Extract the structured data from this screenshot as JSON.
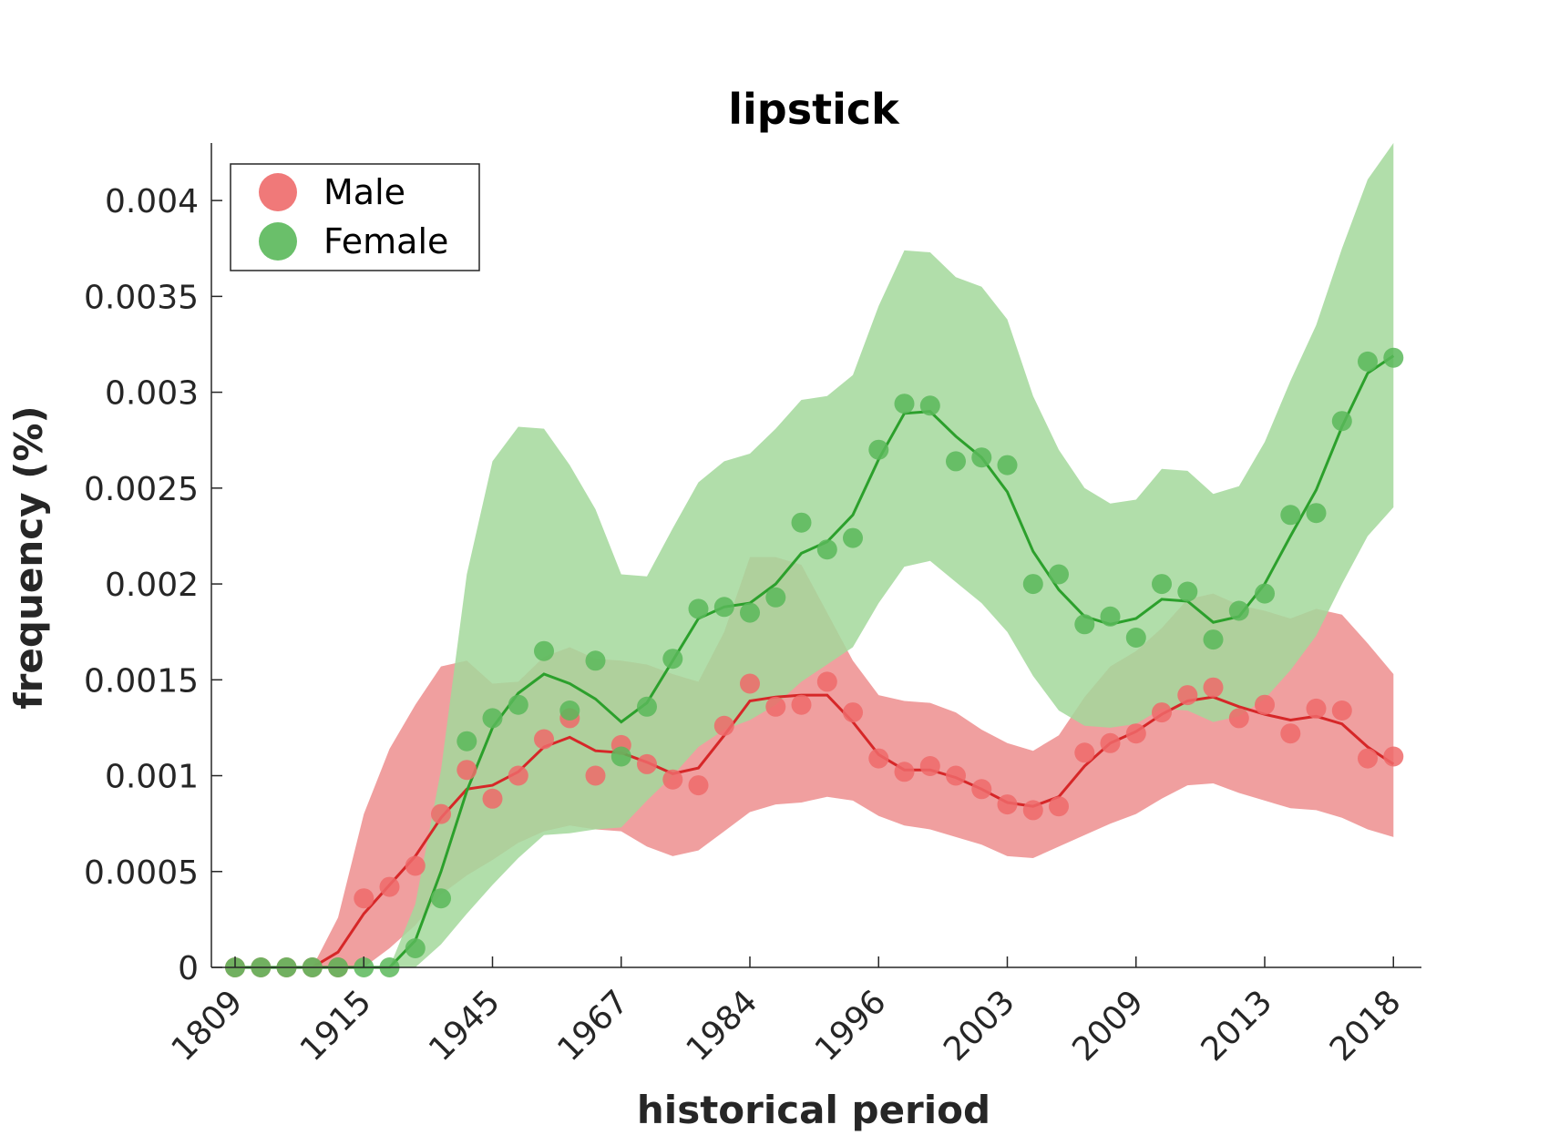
{
  "chart_data": {
    "type": "line",
    "title": "lipstick",
    "xlabel": "historical period",
    "ylabel": "frequency (%)",
    "ylim": [
      0,
      0.0043
    ],
    "yticks": [
      0,
      0.0005,
      0.001,
      0.0015,
      0.002,
      0.0025,
      0.003,
      0.0035,
      0.004
    ],
    "ytick_labels": [
      "0",
      "0.0005",
      "0.001",
      "0.0015",
      "0.002",
      "0.0025",
      "0.003",
      "0.0035",
      "0.004"
    ],
    "xtick_labels": [
      "1809",
      "1915",
      "1945",
      "1967",
      "1984",
      "1996",
      "2003",
      "2009",
      "2013",
      "2018"
    ],
    "xtick_positions": [
      1,
      6,
      11,
      16,
      21,
      26,
      31,
      36,
      41,
      46
    ],
    "x": [
      1,
      2,
      3,
      4,
      5,
      6,
      7,
      8,
      9,
      10,
      11,
      12,
      13,
      14,
      15,
      16,
      17,
      18,
      19,
      20,
      21,
      22,
      23,
      24,
      25,
      26,
      27,
      28,
      29,
      30,
      31,
      32,
      33,
      34,
      35,
      36,
      37,
      38,
      39,
      40,
      41,
      42,
      43,
      44,
      45,
      46
    ],
    "legend_position": "top-left",
    "series": [
      {
        "name": "Male",
        "color": "#d62728",
        "marker_color": "#ee6a6a",
        "band_color": "#ef9a9a",
        "points": [
          0,
          0,
          0,
          0,
          0,
          0.00036,
          0.00042,
          0.00053,
          0.0008,
          0.00103,
          0.00088,
          0.001,
          0.00119,
          0.0013,
          0.001,
          0.00116,
          0.00106,
          0.00098,
          0.00095,
          0.00126,
          0.00148,
          0.00136,
          0.00137,
          0.00149,
          0.00133,
          0.00109,
          0.00102,
          0.00105,
          0.001,
          0.00093,
          0.00085,
          0.00082,
          0.00084,
          0.00112,
          0.00117,
          0.00122,
          0.00133,
          0.00142,
          0.00146,
          0.0013,
          0.00137,
          0.00122,
          0.00135,
          0.00134,
          0.00109,
          0.0011
        ],
        "line": [
          0,
          0,
          0,
          0,
          8e-05,
          0.00028,
          0.00043,
          0.00058,
          0.00078,
          0.00093,
          0.00095,
          0.00102,
          0.00115,
          0.0012,
          0.00113,
          0.00112,
          0.00107,
          0.00101,
          0.00104,
          0.00121,
          0.00139,
          0.00141,
          0.00142,
          0.00142,
          0.00128,
          0.00111,
          0.00103,
          0.00103,
          0.00099,
          0.00093,
          0.00086,
          0.00084,
          0.00089,
          0.00105,
          0.00117,
          0.00123,
          0.00132,
          0.00139,
          0.00141,
          0.00136,
          0.00132,
          0.00129,
          0.00131,
          0.00127,
          0.00115,
          0.00106
        ],
        "lower": [
          0,
          0,
          0,
          0,
          0,
          0,
          0.0001,
          0.00022,
          0.00038,
          0.00048,
          0.00056,
          0.00065,
          0.00071,
          0.00074,
          0.00072,
          0.00071,
          0.00063,
          0.00058,
          0.00061,
          0.00071,
          0.00081,
          0.00085,
          0.00086,
          0.00089,
          0.00087,
          0.00079,
          0.00074,
          0.00072,
          0.00068,
          0.00064,
          0.00058,
          0.00057,
          0.00063,
          0.00069,
          0.00075,
          0.0008,
          0.00088,
          0.00095,
          0.00096,
          0.00091,
          0.00087,
          0.00083,
          0.00082,
          0.00078,
          0.00072,
          0.00068
        ],
        "upper": [
          0,
          0,
          0,
          0,
          0.00026,
          0.0008,
          0.00114,
          0.00137,
          0.00157,
          0.0016,
          0.00148,
          0.00149,
          0.00162,
          0.00167,
          0.00161,
          0.0016,
          0.00158,
          0.00153,
          0.00149,
          0.00175,
          0.00214,
          0.00214,
          0.0021,
          0.00185,
          0.0016,
          0.00142,
          0.00139,
          0.00138,
          0.00133,
          0.00124,
          0.00117,
          0.00113,
          0.00121,
          0.00141,
          0.00157,
          0.00165,
          0.00177,
          0.00192,
          0.00195,
          0.00189,
          0.00186,
          0.00182,
          0.00187,
          0.00184,
          0.00169,
          0.00153
        ]
      },
      {
        "name": "Female",
        "color": "#2ca02c",
        "marker_color": "#5ab85a",
        "band_color": "#a3d89b",
        "points": [
          0,
          0,
          0,
          0,
          0,
          0,
          0,
          0.0001,
          0.00036,
          0.00118,
          0.0013,
          0.00137,
          0.00165,
          0.00134,
          0.0016,
          0.0011,
          0.00136,
          0.00161,
          0.00187,
          0.00188,
          0.00185,
          0.00193,
          0.00232,
          0.00218,
          0.00224,
          0.0027,
          0.00294,
          0.00293,
          0.00264,
          0.00266,
          0.00262,
          0.002,
          0.00205,
          0.00179,
          0.00183,
          0.00172,
          0.002,
          0.00196,
          0.00171,
          0.00186,
          0.00195,
          0.00236,
          0.00237,
          0.00285,
          0.00316,
          0.00318
        ],
        "line": [
          0,
          0,
          0,
          0,
          0,
          0,
          0,
          0.00014,
          0.0005,
          0.00092,
          0.00125,
          0.00143,
          0.00153,
          0.00148,
          0.0014,
          0.00128,
          0.00138,
          0.0016,
          0.00182,
          0.00188,
          0.0019,
          0.002,
          0.00216,
          0.00222,
          0.00236,
          0.00265,
          0.00289,
          0.0029,
          0.00277,
          0.00266,
          0.00248,
          0.00217,
          0.00197,
          0.00183,
          0.00179,
          0.00182,
          0.00192,
          0.00191,
          0.0018,
          0.00183,
          0.002,
          0.00225,
          0.00249,
          0.00282,
          0.0031,
          0.00319
        ],
        "lower": [
          0,
          0,
          0,
          0,
          0,
          0,
          0,
          0,
          0.00012,
          0.00028,
          0.00043,
          0.00057,
          0.00069,
          0.0007,
          0.00072,
          0.00073,
          0.00087,
          0.001,
          0.00115,
          0.00124,
          0.00129,
          0.00137,
          0.00149,
          0.00158,
          0.00167,
          0.0019,
          0.00209,
          0.00212,
          0.00201,
          0.0019,
          0.00175,
          0.00152,
          0.00134,
          0.00126,
          0.00125,
          0.00127,
          0.00135,
          0.00134,
          0.00128,
          0.00131,
          0.0014,
          0.00155,
          0.00173,
          0.002,
          0.00225,
          0.0024
        ],
        "upper": [
          0,
          0,
          0,
          0,
          0,
          0,
          0,
          0.00033,
          0.00103,
          0.00205,
          0.00264,
          0.00282,
          0.00281,
          0.00262,
          0.00239,
          0.00205,
          0.00204,
          0.00229,
          0.00253,
          0.00264,
          0.00268,
          0.00281,
          0.00296,
          0.00298,
          0.00309,
          0.00345,
          0.00374,
          0.00373,
          0.0036,
          0.00355,
          0.00338,
          0.00298,
          0.0027,
          0.0025,
          0.00242,
          0.00244,
          0.0026,
          0.00259,
          0.00247,
          0.00251,
          0.00274,
          0.00306,
          0.00335,
          0.00375,
          0.00411,
          0.0043
        ]
      }
    ]
  }
}
